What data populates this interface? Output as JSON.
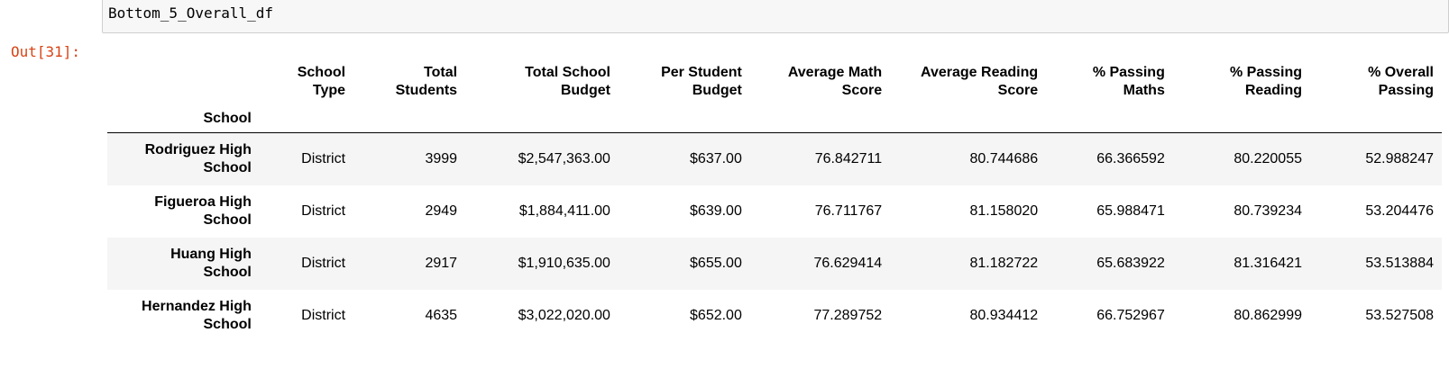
{
  "input": {
    "code": "Bottom_5_Overall_df"
  },
  "output": {
    "prompt": "Out[31]:",
    "index_name": "School",
    "columns": [
      [
        "School",
        "Type"
      ],
      [
        "Total",
        "Students"
      ],
      [
        "Total School",
        "Budget"
      ],
      [
        "Per Student",
        "Budget"
      ],
      [
        "Average Math",
        "Score"
      ],
      [
        "Average Reading",
        "Score"
      ],
      [
        "% Passing",
        "Maths"
      ],
      [
        "% Passing",
        "Reading"
      ],
      [
        "% Overall",
        "Passing"
      ]
    ],
    "rows": [
      {
        "school": [
          "Rodriguez High",
          "School"
        ],
        "values": [
          "District",
          "3999",
          "$2,547,363.00",
          "$637.00",
          "76.842711",
          "80.744686",
          "66.366592",
          "80.220055",
          "52.988247"
        ]
      },
      {
        "school": [
          "Figueroa High",
          "School"
        ],
        "values": [
          "District",
          "2949",
          "$1,884,411.00",
          "$639.00",
          "76.711767",
          "81.158020",
          "65.988471",
          "80.739234",
          "53.204476"
        ]
      },
      {
        "school": [
          "Huang High",
          "School"
        ],
        "values": [
          "District",
          "2917",
          "$1,910,635.00",
          "$655.00",
          "76.629414",
          "81.182722",
          "65.683922",
          "81.316421",
          "53.513884"
        ]
      },
      {
        "school": [
          "Hernandez High",
          "School"
        ],
        "values": [
          "District",
          "4635",
          "$3,022,020.00",
          "$652.00",
          "77.289752",
          "80.934412",
          "66.752967",
          "80.862999",
          "53.527508"
        ]
      }
    ]
  },
  "colors": {
    "prompt_out": "#d84315",
    "input_bg": "#f7f7f7",
    "row_stripe": "#f5f5f5"
  }
}
